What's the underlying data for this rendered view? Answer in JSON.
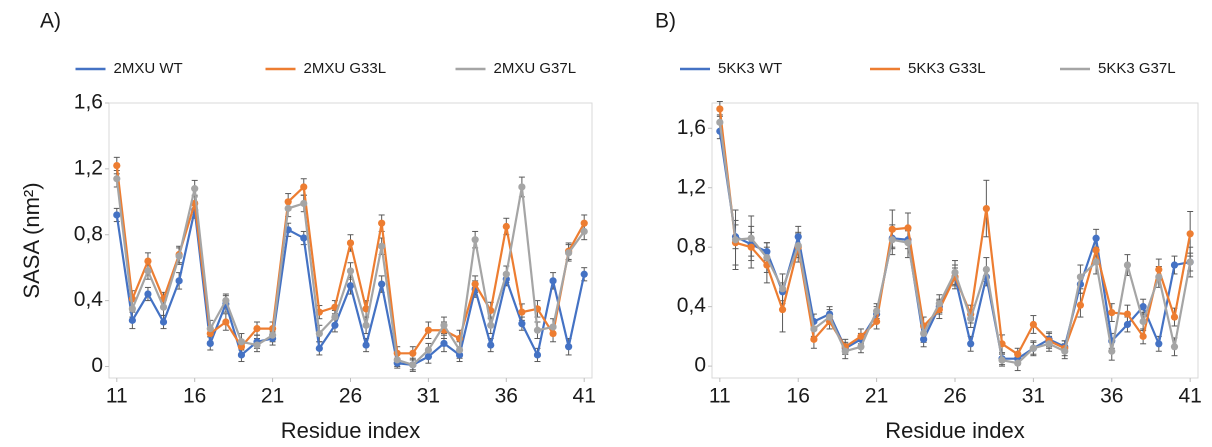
{
  "chart_data": [
    {
      "type": "line",
      "panel_label": "A)",
      "y_label": "SASA (nm²)",
      "x_label": "Residue index",
      "x": [
        11,
        12,
        13,
        14,
        15,
        16,
        17,
        18,
        19,
        20,
        21,
        22,
        23,
        24,
        25,
        26,
        27,
        28,
        29,
        30,
        31,
        32,
        33,
        34,
        35,
        36,
        37,
        38,
        39,
        40,
        41
      ],
      "xlim": [
        10.5,
        41.5
      ],
      "xticks": [
        11,
        16,
        21,
        26,
        31,
        36,
        41
      ],
      "ylim": [
        -0.07,
        1.6
      ],
      "yticks": [
        0,
        {
          "value": 0.4,
          "label": "0,4"
        },
        {
          "value": 0.8,
          "label": "0,8"
        },
        {
          "value": 1.2,
          "label": "1,2"
        },
        {
          "value": 1.6,
          "label": "1,6"
        }
      ],
      "series": [
        {
          "name": "2MXU WT",
          "color": "#4472c4",
          "values": [
            0.92,
            0.28,
            0.44,
            0.27,
            0.52,
            0.95,
            0.14,
            0.38,
            0.07,
            0.15,
            0.17,
            0.83,
            0.78,
            0.11,
            0.25,
            0.49,
            0.13,
            0.5,
            0.02,
            0.01,
            0.06,
            0.14,
            0.07,
            0.47,
            0.13,
            0.53,
            0.26,
            0.07,
            0.52,
            0.12,
            0.56
          ],
          "errors": [
            0.04,
            0.05,
            0.04,
            0.04,
            0.05,
            0.05,
            0.04,
            0.05,
            0.04,
            0.04,
            0.04,
            0.04,
            0.04,
            0.04,
            0.04,
            0.05,
            0.04,
            0.05,
            0.03,
            0.03,
            0.04,
            0.05,
            0.04,
            0.05,
            0.04,
            0.04,
            0.04,
            0.04,
            0.05,
            0.05,
            0.04
          ]
        },
        {
          "name": "2MXU G33L",
          "color": "#ed7d31",
          "values": [
            1.22,
            0.41,
            0.64,
            0.41,
            0.68,
            0.99,
            0.2,
            0.27,
            0.12,
            0.23,
            0.23,
            1.0,
            1.09,
            0.33,
            0.36,
            0.75,
            0.35,
            0.87,
            0.08,
            0.08,
            0.22,
            0.22,
            0.17,
            0.5,
            0.34,
            0.85,
            0.33,
            0.35,
            0.2,
            0.7,
            0.87
          ],
          "errors": [
            0.05,
            0.05,
            0.05,
            0.04,
            0.05,
            0.05,
            0.05,
            0.05,
            0.04,
            0.04,
            0.04,
            0.05,
            0.05,
            0.04,
            0.04,
            0.05,
            0.05,
            0.05,
            0.04,
            0.04,
            0.05,
            0.05,
            0.05,
            0.05,
            0.05,
            0.05,
            0.05,
            0.05,
            0.05,
            0.05,
            0.05
          ]
        },
        {
          "name": "2MXU G37L",
          "color": "#a5a5a5",
          "values": [
            1.14,
            0.35,
            0.58,
            0.36,
            0.67,
            1.08,
            0.23,
            0.4,
            0.15,
            0.13,
            0.19,
            0.96,
            0.99,
            0.2,
            0.3,
            0.58,
            0.25,
            0.73,
            0.04,
            0.01,
            0.1,
            0.25,
            0.1,
            0.77,
            0.25,
            0.56,
            1.09,
            0.22,
            0.24,
            0.69,
            0.82
          ],
          "errors": [
            0.05,
            0.05,
            0.05,
            0.05,
            0.05,
            0.05,
            0.05,
            0.04,
            0.05,
            0.04,
            0.04,
            0.05,
            0.05,
            0.05,
            0.04,
            0.05,
            0.05,
            0.05,
            0.04,
            0.04,
            0.04,
            0.05,
            0.05,
            0.05,
            0.05,
            0.05,
            0.06,
            0.05,
            0.05,
            0.05,
            0.05
          ]
        }
      ]
    },
    {
      "type": "line",
      "panel_label": "B)",
      "x_label": "Residue index",
      "x": [
        11,
        12,
        13,
        14,
        15,
        16,
        17,
        18,
        19,
        20,
        21,
        22,
        23,
        24,
        25,
        26,
        27,
        28,
        29,
        30,
        31,
        32,
        33,
        34,
        35,
        36,
        37,
        38,
        39,
        40,
        41
      ],
      "xlim": [
        10.5,
        41.5
      ],
      "xticks": [
        11,
        16,
        21,
        26,
        31,
        36,
        41
      ],
      "ylim": [
        -0.08,
        1.77
      ],
      "yticks": [
        0,
        {
          "value": 0.4,
          "label": "0,4"
        },
        {
          "value": 0.8,
          "label": "0,8"
        },
        {
          "value": 1.2,
          "label": "1,2"
        },
        {
          "value": 1.6,
          "label": "1,6"
        }
      ],
      "series": [
        {
          "name": "5KK3 WT",
          "color": "#4472c4",
          "values": [
            1.58,
            0.87,
            0.82,
            0.77,
            0.5,
            0.87,
            0.3,
            0.35,
            0.12,
            0.18,
            0.35,
            0.86,
            0.85,
            0.18,
            0.4,
            0.6,
            0.15,
            0.6,
            0.05,
            0.05,
            0.12,
            0.18,
            0.13,
            0.55,
            0.86,
            0.17,
            0.28,
            0.4,
            0.15,
            0.68,
            0.7
          ],
          "errors": [
            0.05,
            0.08,
            0.08,
            0.06,
            0.06,
            0.07,
            0.05,
            0.05,
            0.04,
            0.04,
            0.05,
            0.06,
            0.06,
            0.05,
            0.05,
            0.06,
            0.05,
            0.06,
            0.04,
            0.04,
            0.04,
            0.05,
            0.04,
            0.06,
            0.06,
            0.05,
            0.05,
            0.05,
            0.05,
            0.06,
            0.06
          ]
        },
        {
          "name": "5KK3 G33L",
          "color": "#ed7d31",
          "values": [
            1.73,
            0.83,
            0.8,
            0.68,
            0.38,
            0.8,
            0.18,
            0.3,
            0.13,
            0.2,
            0.3,
            0.92,
            0.93,
            0.27,
            0.38,
            0.6,
            0.35,
            1.06,
            0.15,
            0.08,
            0.28,
            0.17,
            0.12,
            0.41,
            0.78,
            0.36,
            0.35,
            0.2,
            0.65,
            0.33,
            0.89
          ],
          "errors": [
            0.05,
            0.15,
            0.14,
            0.12,
            0.15,
            0.1,
            0.06,
            0.05,
            0.05,
            0.05,
            0.05,
            0.13,
            0.1,
            0.06,
            0.06,
            0.08,
            0.06,
            0.19,
            0.06,
            0.04,
            0.06,
            0.05,
            0.05,
            0.08,
            0.08,
            0.06,
            0.06,
            0.05,
            0.07,
            0.06,
            0.15
          ]
        },
        {
          "name": "5KK3 G37L",
          "color": "#a5a5a5",
          "values": [
            1.64,
            0.85,
            0.86,
            0.73,
            0.52,
            0.81,
            0.25,
            0.33,
            0.1,
            0.13,
            0.37,
            0.85,
            0.83,
            0.22,
            0.42,
            0.63,
            0.32,
            0.65,
            0.04,
            0.02,
            0.12,
            0.15,
            0.1,
            0.6,
            0.7,
            0.1,
            0.68,
            0.3,
            0.6,
            0.13,
            0.7
          ],
          "errors": [
            0.05,
            0.2,
            0.15,
            0.1,
            0.1,
            0.08,
            0.05,
            0.05,
            0.05,
            0.04,
            0.05,
            0.1,
            0.1,
            0.06,
            0.06,
            0.08,
            0.06,
            0.08,
            0.04,
            0.05,
            0.05,
            0.05,
            0.05,
            0.08,
            0.08,
            0.06,
            0.07,
            0.06,
            0.07,
            0.06,
            0.1
          ]
        }
      ]
    }
  ]
}
